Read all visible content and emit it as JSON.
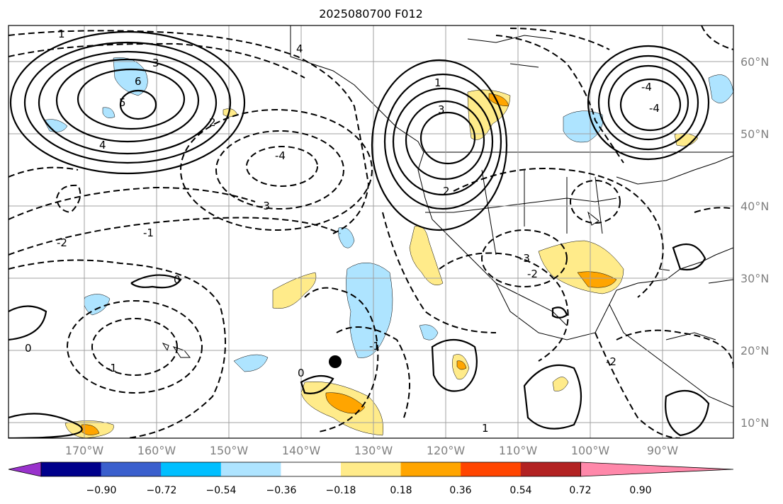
{
  "title": "2025080700 F012",
  "lat_labels": [
    "60°N",
    "50°N",
    "40°N",
    "30°N",
    "20°N",
    "10°N"
  ],
  "lon_labels": [
    "170°W",
    "160°W",
    "150°W",
    "140°W",
    "130°W",
    "120°W",
    "110°W",
    "100°W",
    "90°W"
  ],
  "colorbar": {
    "ticks": [
      "−0.90",
      "−0.72",
      "−0.54",
      "−0.36",
      "−0.18",
      "0.18",
      "0.36",
      "0.54",
      "0.72",
      "0.90"
    ],
    "colors": [
      "#9932cc",
      "#00008b",
      "#3a5fcd",
      "#00bfff",
      "#aee4ff",
      "#ffffff",
      "#ffeb8a",
      "#ffa500",
      "#ff4500",
      "#b22222",
      "#ff88aa"
    ]
  },
  "contour_labels": [
    "1",
    "2",
    "3",
    "4",
    "6",
    "5",
    "4",
    "-4",
    "-3",
    "-2",
    "-1",
    "0",
    "1",
    "2",
    "3",
    "-4",
    "-4",
    "-3",
    "-2",
    "-1",
    "1",
    "0",
    "-2",
    "-1",
    "0"
  ],
  "marker": "storm-center-dot"
}
